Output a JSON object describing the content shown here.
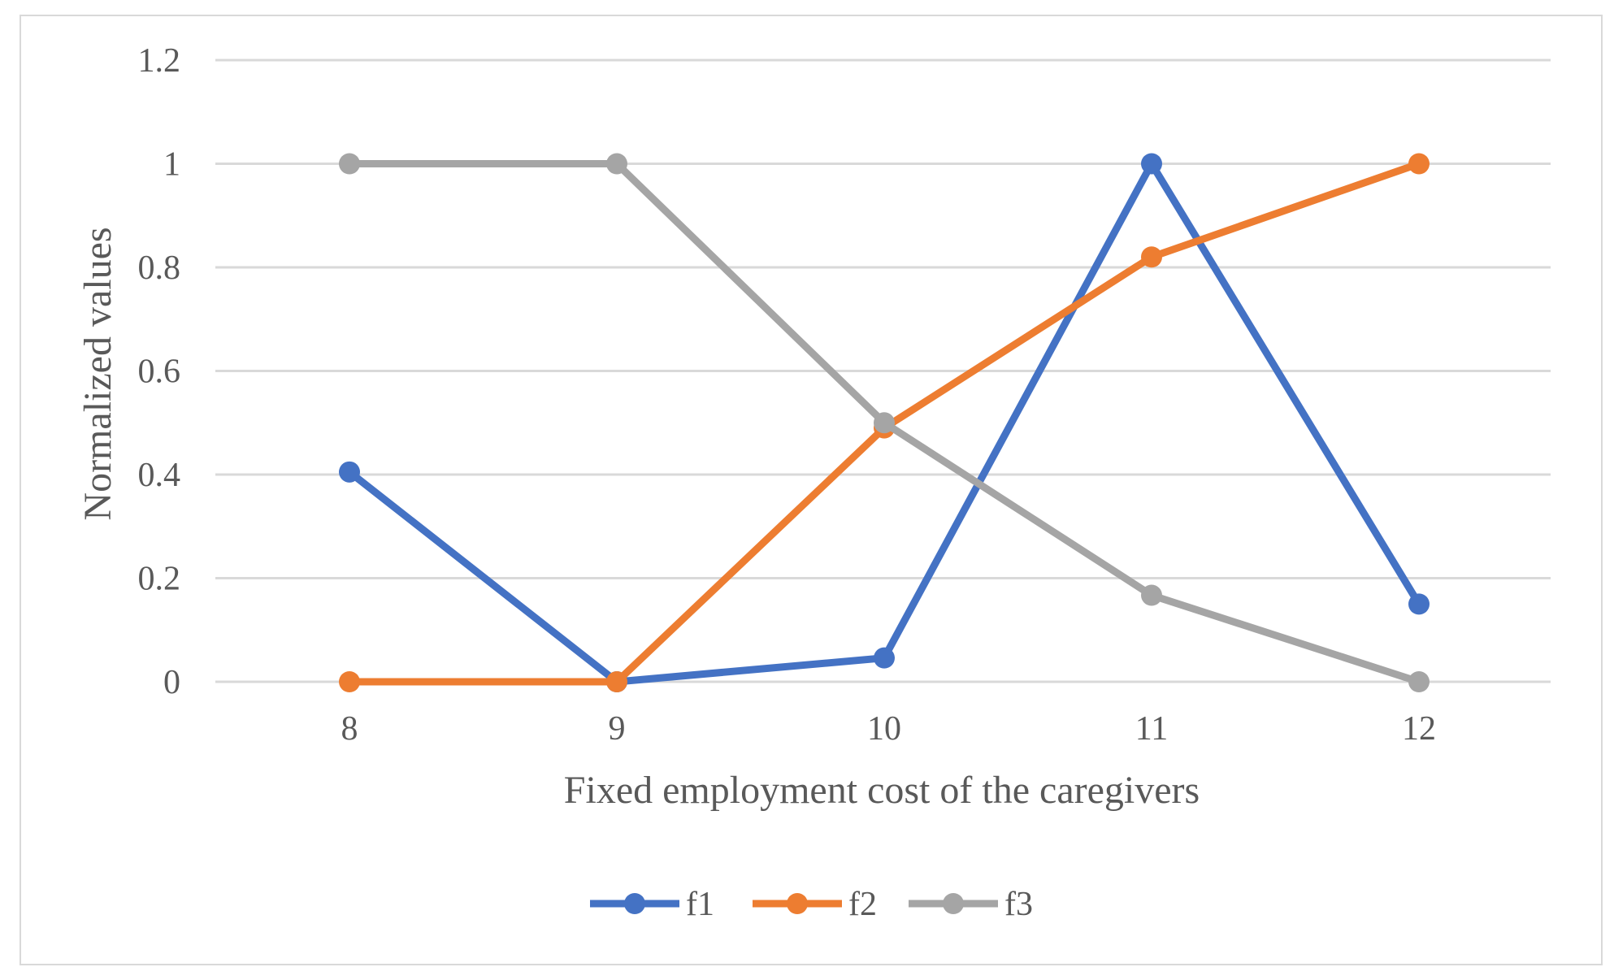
{
  "chart_data": {
    "type": "line",
    "title": "",
    "xlabel": "Fixed employment cost of the caregivers",
    "ylabel": "Normalized values",
    "categories": [
      "8",
      "9",
      "10",
      "11",
      "12"
    ],
    "y_ticks": [
      "0",
      "0.2",
      "0.4",
      "0.6",
      "0.8",
      "1",
      "1.2"
    ],
    "ylim": [
      0,
      1.2
    ],
    "grid": true,
    "legend_position": "bottom",
    "series": [
      {
        "name": "f1",
        "color": "#4472c4",
        "values": [
          0.405,
          0.0,
          0.046,
          1.0,
          0.15
        ]
      },
      {
        "name": "f2",
        "color": "#ed7d31",
        "values": [
          0.0,
          0.0,
          0.49,
          0.82,
          1.0
        ]
      },
      {
        "name": "f3",
        "color": "#a5a5a5",
        "values": [
          1.0,
          1.0,
          0.5,
          0.167,
          0.0
        ]
      }
    ]
  }
}
